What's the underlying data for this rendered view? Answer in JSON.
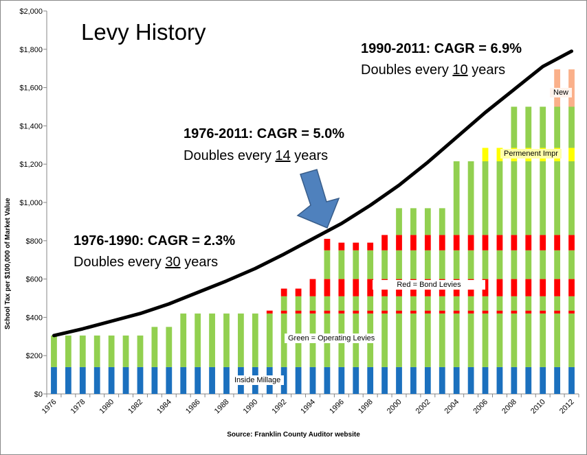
{
  "chart_data": {
    "type": "stacked-bar-with-line",
    "title": "Levy History",
    "xlabel": "",
    "ylabel": "School Tax per $100,000 of Market Value",
    "source": "Source: Franklin County Auditor website",
    "ylim": [
      0,
      2000
    ],
    "yticks": [
      "$0",
      "$200",
      "$400",
      "$600",
      "$800",
      "$1,000",
      "$1,200",
      "$1,400",
      "$1,600",
      "$1,800",
      "$2,000"
    ],
    "ytick_values": [
      0,
      200,
      400,
      600,
      800,
      1000,
      1200,
      1400,
      1600,
      1800,
      2000
    ],
    "xticks": [
      "1976",
      "1978",
      "1980",
      "1982",
      "1984",
      "1986",
      "1988",
      "1990",
      "1992",
      "1994",
      "1996",
      "1998",
      "2000",
      "2002",
      "2004",
      "2006",
      "2008",
      "2010",
      "2012"
    ],
    "categories": [
      1976,
      1977,
      1978,
      1979,
      1980,
      1981,
      1982,
      1983,
      1984,
      1985,
      1986,
      1987,
      1988,
      1989,
      1990,
      1991,
      1992,
      1993,
      1994,
      1995,
      1996,
      1997,
      1998,
      1999,
      2000,
      2001,
      2002,
      2003,
      2004,
      2005,
      2006,
      2007,
      2008,
      2009,
      2010,
      2011,
      2012
    ],
    "series": [
      {
        "name": "Inside Millage",
        "color": "#1b70be",
        "values": [
          140,
          140,
          140,
          140,
          140,
          140,
          140,
          140,
          140,
          140,
          140,
          140,
          140,
          140,
          140,
          140,
          140,
          140,
          140,
          140,
          140,
          140,
          140,
          140,
          140,
          140,
          140,
          140,
          140,
          140,
          140,
          140,
          140,
          140,
          140,
          140,
          140
        ]
      },
      {
        "name": "Operating Levies (lower)",
        "color": "#92d050",
        "values": [
          165,
          165,
          165,
          165,
          165,
          165,
          165,
          210,
          210,
          280,
          280,
          280,
          280,
          280,
          280,
          280,
          280,
          280,
          280,
          280,
          280,
          280,
          280,
          280,
          280,
          280,
          280,
          280,
          280,
          280,
          280,
          280,
          280,
          280,
          280,
          280,
          280
        ]
      },
      {
        "name": "Bond Levies (lower)",
        "color": "#ff0000",
        "values": [
          0,
          0,
          0,
          0,
          0,
          0,
          0,
          0,
          0,
          0,
          0,
          0,
          0,
          0,
          0,
          15,
          15,
          15,
          15,
          15,
          15,
          15,
          15,
          15,
          15,
          15,
          15,
          15,
          15,
          15,
          15,
          15,
          15,
          15,
          15,
          15,
          15
        ]
      },
      {
        "name": "Operating Levies (middle)",
        "color": "#92d050",
        "values": [
          0,
          0,
          0,
          0,
          0,
          0,
          0,
          0,
          0,
          0,
          0,
          0,
          0,
          0,
          0,
          0,
          75,
          75,
          75,
          75,
          75,
          75,
          75,
          75,
          75,
          75,
          75,
          75,
          75,
          75,
          75,
          75,
          75,
          75,
          75,
          75,
          75
        ]
      },
      {
        "name": "Bond Levies (upper)",
        "color": "#ff0000",
        "values": [
          0,
          0,
          0,
          0,
          0,
          0,
          0,
          0,
          0,
          0,
          0,
          0,
          0,
          0,
          0,
          0,
          40,
          40,
          90,
          90,
          90,
          90,
          90,
          90,
          90,
          90,
          90,
          90,
          90,
          90,
          90,
          90,
          90,
          90,
          90,
          90,
          90
        ]
      },
      {
        "name": "Operating Levies (upper)",
        "color": "#92d050",
        "values": [
          0,
          0,
          0,
          0,
          0,
          0,
          0,
          0,
          0,
          0,
          0,
          0,
          0,
          0,
          0,
          0,
          0,
          0,
          0,
          150,
          150,
          150,
          150,
          150,
          150,
          150,
          150,
          150,
          150,
          150,
          150,
          150,
          150,
          150,
          150,
          150,
          150
        ]
      },
      {
        "name": "Bond Levies (top)",
        "color": "#ff0000",
        "values": [
          0,
          0,
          0,
          0,
          0,
          0,
          0,
          0,
          0,
          0,
          0,
          0,
          0,
          0,
          0,
          0,
          0,
          0,
          0,
          60,
          40,
          40,
          40,
          80,
          80,
          80,
          80,
          80,
          80,
          80,
          80,
          80,
          80,
          80,
          80,
          80,
          80
        ]
      },
      {
        "name": "Operating Levies (top)",
        "color": "#92d050",
        "values": [
          0,
          0,
          0,
          0,
          0,
          0,
          0,
          0,
          0,
          0,
          0,
          0,
          0,
          0,
          0,
          0,
          0,
          0,
          0,
          0,
          0,
          0,
          0,
          0,
          140,
          140,
          140,
          140,
          385,
          385,
          385,
          385,
          385,
          385,
          385,
          385,
          385
        ]
      },
      {
        "name": "Permanent Improvement",
        "color": "#ffff00",
        "values": [
          0,
          0,
          0,
          0,
          0,
          0,
          0,
          0,
          0,
          0,
          0,
          0,
          0,
          0,
          0,
          0,
          0,
          0,
          0,
          0,
          0,
          0,
          0,
          0,
          0,
          0,
          0,
          0,
          0,
          0,
          70,
          70,
          70,
          70,
          70,
          70,
          70
        ]
      },
      {
        "name": "Operating Levies (newest)",
        "color": "#92d050",
        "values": [
          0,
          0,
          0,
          0,
          0,
          0,
          0,
          0,
          0,
          0,
          0,
          0,
          0,
          0,
          0,
          0,
          0,
          0,
          0,
          0,
          0,
          0,
          0,
          0,
          0,
          0,
          0,
          0,
          0,
          0,
          0,
          0,
          215,
          215,
          215,
          215,
          215
        ]
      },
      {
        "name": "New",
        "color": "#fab08a",
        "values": [
          0,
          0,
          0,
          0,
          0,
          0,
          0,
          0,
          0,
          0,
          0,
          0,
          0,
          0,
          0,
          0,
          0,
          0,
          0,
          0,
          0,
          0,
          0,
          0,
          0,
          0,
          0,
          0,
          0,
          0,
          0,
          0,
          0,
          0,
          0,
          195,
          195
        ]
      }
    ],
    "trend_line": {
      "name": "CAGR trend",
      "color": "#000000",
      "x": [
        1976,
        1978,
        1980,
        1982,
        1984,
        1986,
        1988,
        1990,
        1992,
        1994,
        1996,
        1998,
        2000,
        2002,
        2004,
        2006,
        2008,
        2010,
        2012
      ],
      "values": [
        305,
        340,
        380,
        420,
        470,
        530,
        590,
        655,
        730,
        810,
        890,
        985,
        1090,
        1210,
        1340,
        1470,
        1590,
        1710,
        1790
      ]
    },
    "segment_labels": {
      "inside": "Inside Millage",
      "operating": "Green = Operating Levies",
      "bond": "Red = Bond Levies",
      "permanent": "Permenent Impr",
      "new": "New"
    },
    "annotations": {
      "cagr_1990_2011": "1990-2011: CAGR = 6.9%",
      "dbl_1990_2011_pre": "Doubles every ",
      "dbl_1990_2011_num": "10",
      "dbl_1990_2011_post": " years",
      "cagr_1976_2011": "1976-2011: CAGR = 5.0%",
      "dbl_1976_2011_pre": "Doubles every ",
      "dbl_1976_2011_num": "14",
      "dbl_1976_2011_post": " years",
      "cagr_1976_1990": "1976-1990: CAGR = 2.3%",
      "dbl_1976_1990_pre": "Doubles every ",
      "dbl_1976_1990_num": "30",
      "dbl_1976_1990_post": " years"
    },
    "arrow_color": "#4f81bd"
  }
}
